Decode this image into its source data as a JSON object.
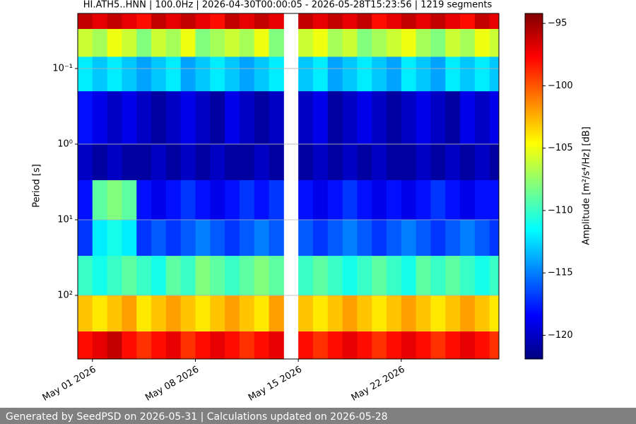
{
  "chart_data": {
    "type": "spectrogram",
    "title": "HI.ATH5..HNN | 100.0Hz | 2026-04-30T00:00:05 - 2026-05-28T15:23:56 | 1219 segments",
    "ylabel": "Period [s]",
    "colorbar_label": "Amplitude [m²/s⁴/Hz] [dB]",
    "footer": "Generated by SeedPSD on 2026-05-31 | Calculations updated on 2026-05-28",
    "log_y": true,
    "invert_y": true,
    "grid": true,
    "colormap": "jet",
    "xlim": [
      "2026-04-30T00:00:05",
      "2026-05-28T15:23:56"
    ],
    "xticks": [
      {
        "value": "2026-05-01",
        "label": "May 01 2026"
      },
      {
        "value": "2026-05-08",
        "label": "May 08 2026"
      },
      {
        "value": "2026-05-15",
        "label": "May 15 2026"
      },
      {
        "value": "2026-05-22",
        "label": "May 22 2026"
      }
    ],
    "ylim": [
      0.0187,
      693
    ],
    "yticks": [
      {
        "value": 0.1,
        "label": "10⁻¹"
      },
      {
        "value": 1,
        "label": "10⁰"
      },
      {
        "value": 10,
        "label": "10¹"
      },
      {
        "value": 100,
        "label": "10²"
      }
    ],
    "clim": [
      -121.9,
      -94.2
    ],
    "cticks": [
      {
        "value": -95,
        "label": "−95"
      },
      {
        "value": -100,
        "label": "−100"
      },
      {
        "value": -105,
        "label": "−105"
      },
      {
        "value": -110,
        "label": "−110"
      },
      {
        "value": -115,
        "label": "−115"
      },
      {
        "value": -120,
        "label": "−120"
      }
    ],
    "time_bins": [
      "2026-04-30T00:00:05",
      "2026-05-01",
      "2026-05-02",
      "2026-05-03",
      "2026-05-04",
      "2026-05-05",
      "2026-05-06",
      "2026-05-07",
      "2026-05-08",
      "2026-05-09",
      "2026-05-10",
      "2026-05-11",
      "2026-05-12",
      "2026-05-13",
      "2026-05-14",
      "2026-05-15",
      "2026-05-16",
      "2026-05-17",
      "2026-05-18",
      "2026-05-19",
      "2026-05-20",
      "2026-05-21",
      "2026-05-22",
      "2026-05-23",
      "2026-05-24",
      "2026-05-25",
      "2026-05-26",
      "2026-05-27",
      "2026-05-28",
      "2026-05-28T15:23:56"
    ],
    "period_bins": [
      0.0187,
      0.03,
      0.07,
      0.2,
      1,
      3,
      10,
      30,
      100,
      300,
      693
    ],
    "z": [
      [
        -96,
        -97,
        -96,
        -97,
        -98,
        -96,
        -97,
        -96,
        -97,
        -98,
        -96,
        -97,
        -96,
        -97,
        null,
        -96,
        -97,
        -96,
        -97,
        -96,
        -98,
        -97,
        -96,
        -97,
        -96,
        -97,
        -98,
        -96,
        -97
      ],
      [
        -106,
        -107,
        -105,
        -106,
        -108,
        -106,
        -107,
        -105,
        -108,
        -107,
        -106,
        -107,
        -105,
        -108,
        null,
        -106,
        -105,
        -107,
        -106,
        -108,
        -107,
        -106,
        -105,
        -107,
        -108,
        -106,
        -107,
        -105,
        -106
      ],
      [
        -112,
        -113,
        -112,
        -113,
        -114,
        -113,
        -112,
        -114,
        -113,
        -112,
        -113,
        -114,
        -113,
        -112,
        null,
        -113,
        -112,
        -114,
        -113,
        -112,
        -113,
        -114,
        -112,
        -113,
        -114,
        -112,
        -113,
        -112,
        -113
      ],
      [
        -118,
        -119,
        -120,
        -119,
        -120,
        -121,
        -120,
        -119,
        -120,
        -121,
        -119,
        -120,
        -121,
        -120,
        null,
        -120,
        -119,
        -121,
        -120,
        -119,
        -120,
        -121,
        -120,
        -119,
        -120,
        -121,
        -119,
        -120,
        -119
      ],
      [
        -120,
        -121,
        -120,
        -121,
        -121,
        -120,
        -121,
        -120,
        -121,
        -120,
        -121,
        -121,
        -120,
        -121,
        null,
        -121,
        -120,
        -121,
        -120,
        -121,
        -120,
        -121,
        -121,
        -120,
        -121,
        -120,
        -121,
        -120,
        -121
      ],
      [
        -118,
        -109,
        -108,
        -109,
        -118,
        -119,
        -118,
        -117,
        -118,
        -119,
        -118,
        -117,
        -118,
        -117,
        null,
        -118,
        -119,
        -118,
        -117,
        -118,
        -119,
        -118,
        -119,
        -118,
        -117,
        -118,
        -119,
        -118,
        -118
      ],
      [
        -117,
        -112,
        -111,
        -112,
        -117,
        -116,
        -117,
        -116,
        -115,
        -116,
        -117,
        -116,
        -115,
        -116,
        null,
        -116,
        -117,
        -116,
        -115,
        -116,
        -117,
        -116,
        -115,
        -116,
        -117,
        -116,
        -115,
        -116,
        -117
      ],
      [
        -110,
        -111,
        -110,
        -109,
        -110,
        -111,
        -109,
        -110,
        -108,
        -109,
        -110,
        -109,
        -108,
        -109,
        null,
        -110,
        -109,
        -110,
        -111,
        -110,
        -109,
        -110,
        -111,
        -109,
        -110,
        -109,
        -110,
        -111,
        -110
      ],
      [
        -103,
        -104,
        -103,
        -102,
        -104,
        -103,
        -102,
        -103,
        -104,
        -103,
        -102,
        -103,
        -104,
        -102,
        null,
        -103,
        -104,
        -103,
        -102,
        -103,
        -104,
        -103,
        -102,
        -103,
        -104,
        -103,
        -102,
        -103,
        -104
      ],
      [
        -98,
        -97,
        -96,
        -98,
        -99,
        -98,
        -97,
        -99,
        -98,
        -97,
        -98,
        -99,
        -98,
        -97,
        null,
        -98,
        -99,
        -98,
        -97,
        -98,
        -99,
        -98,
        -97,
        -98,
        -99,
        -98,
        -97,
        -98,
        -99
      ]
    ]
  }
}
